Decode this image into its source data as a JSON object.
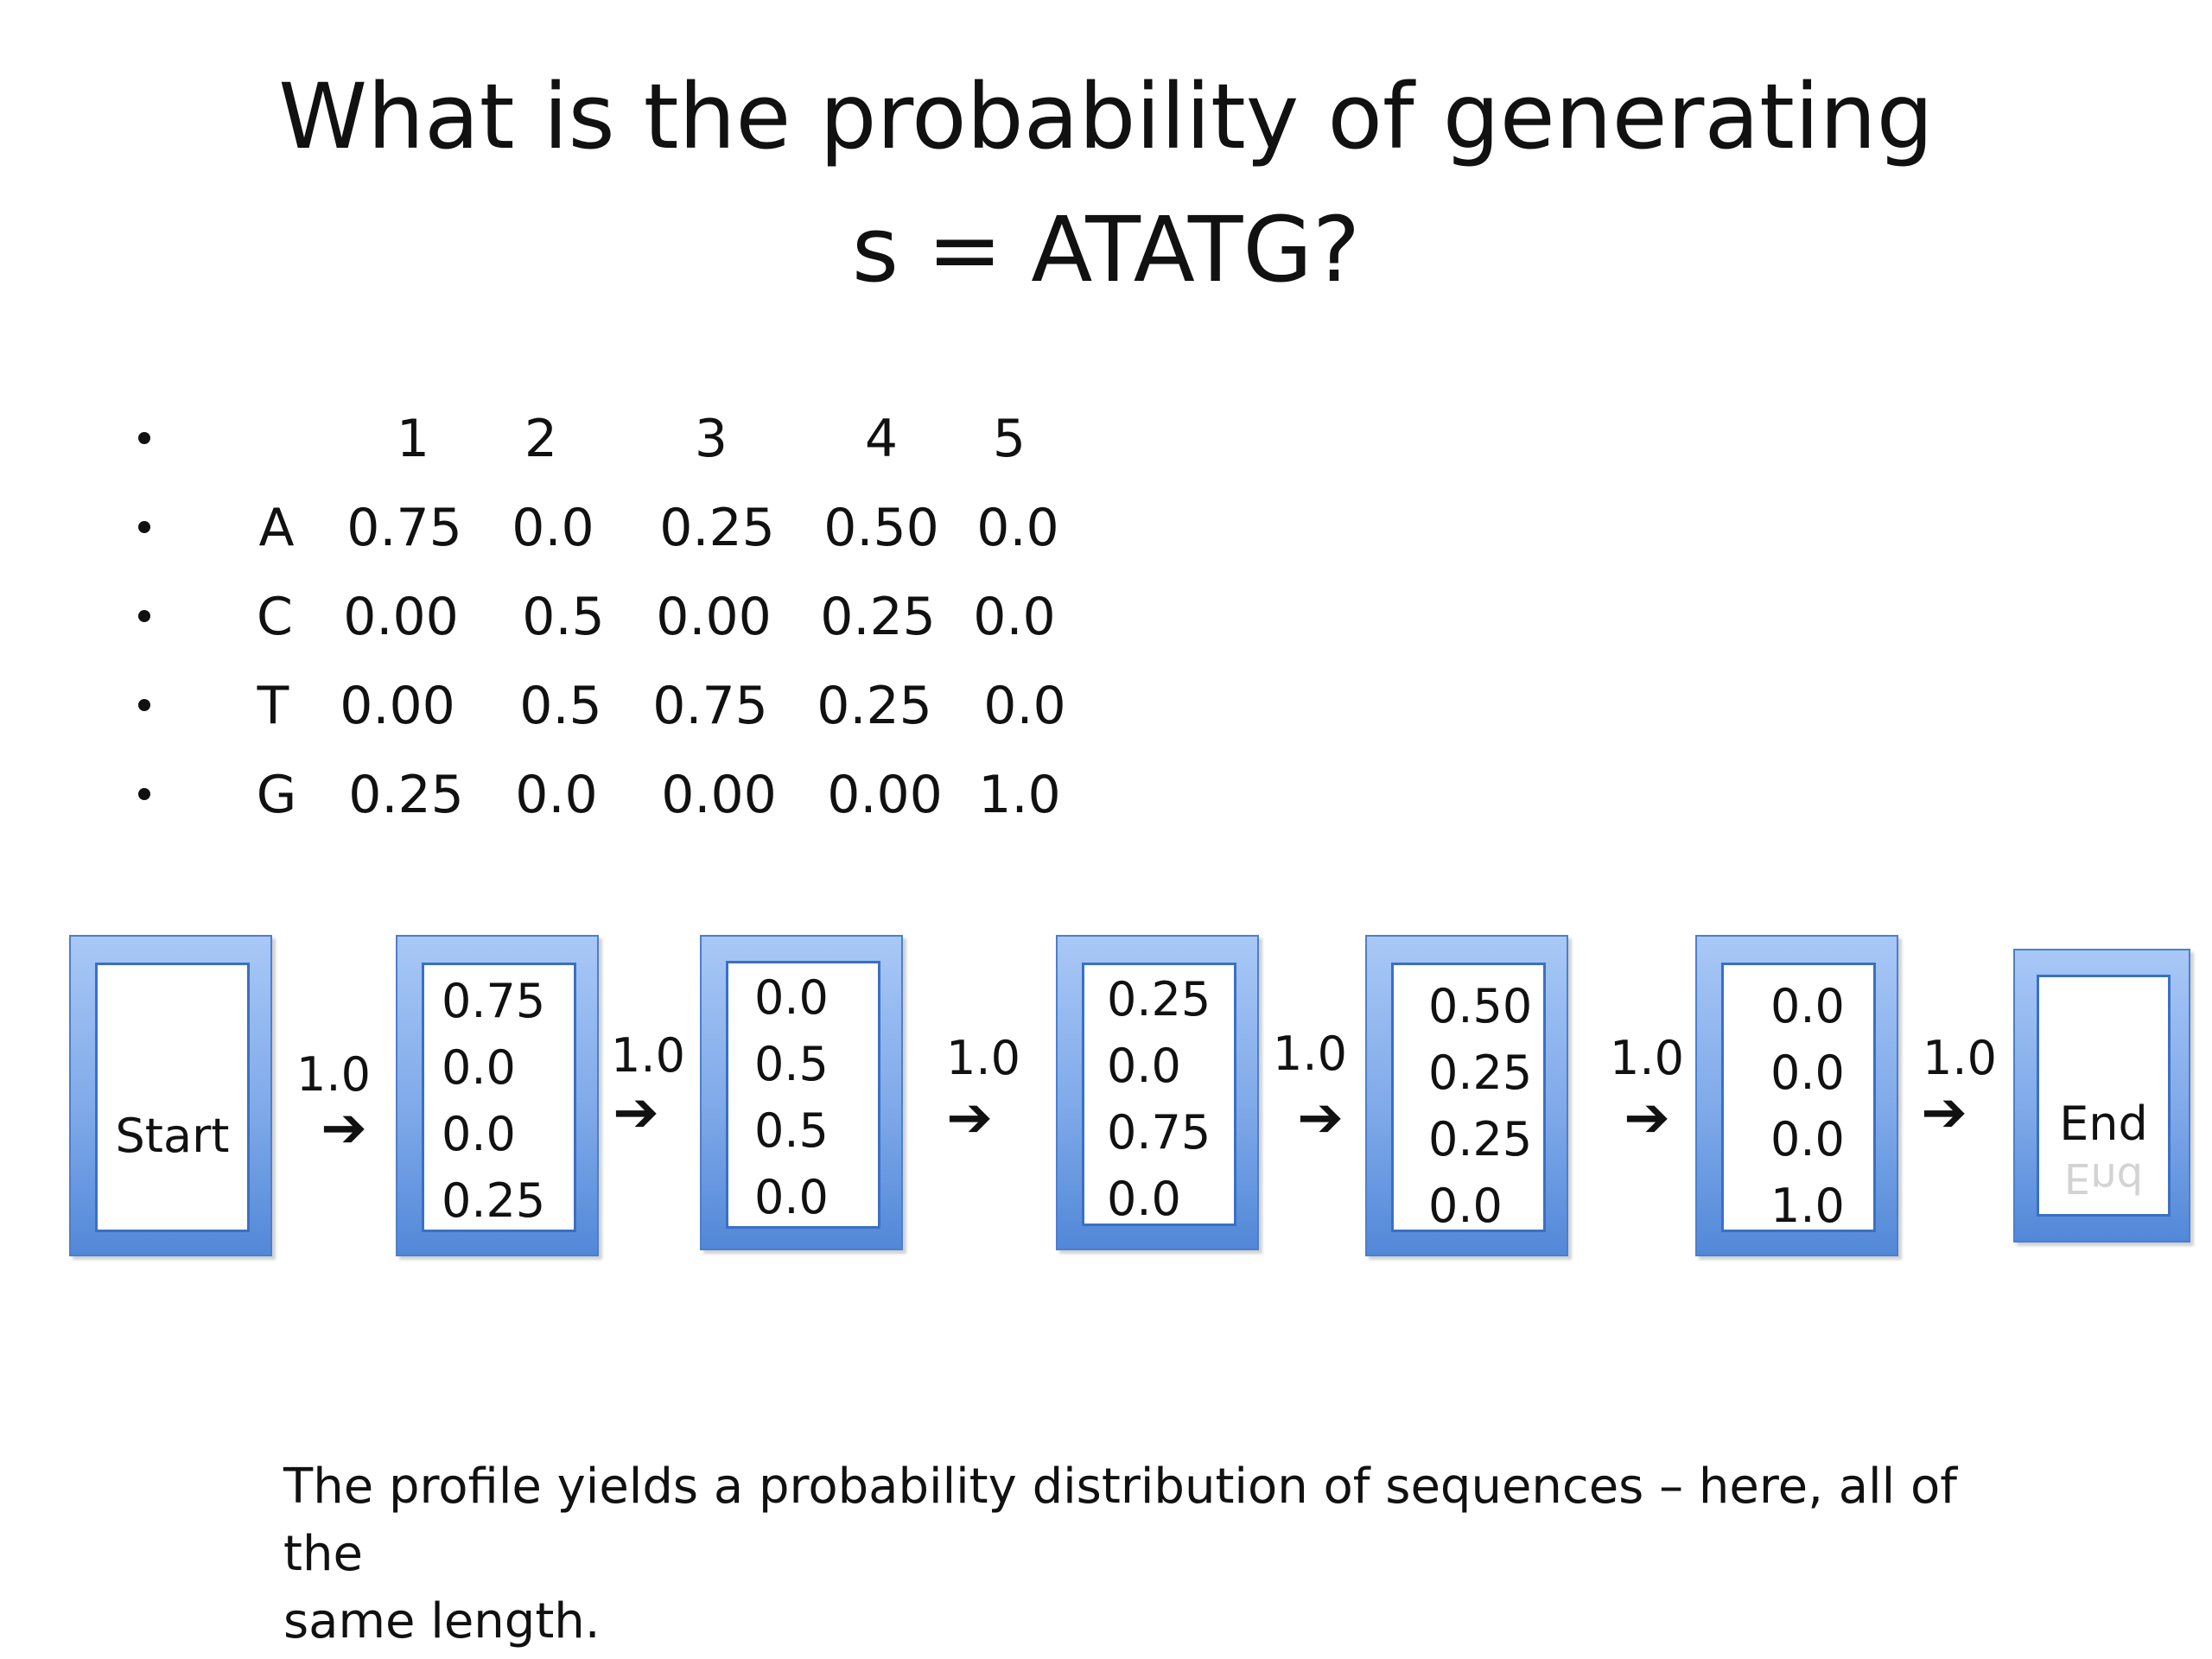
{
  "title": {
    "line1": "What is the probability of generating",
    "line2": "s = ATATG?"
  },
  "profile_table": {
    "columns": [
      "1",
      "2",
      "3",
      "4",
      "5"
    ],
    "rows": [
      {
        "symbol": "A",
        "values": [
          "0.75",
          "0.0",
          "0.25",
          "0.50",
          "0.0"
        ]
      },
      {
        "symbol": "C",
        "values": [
          "0.00",
          "0.5",
          "0.00",
          "0.25",
          "0.0"
        ]
      },
      {
        "symbol": "T",
        "values": [
          "0.00",
          "0.5",
          "0.75",
          "0.25",
          "0.0"
        ]
      },
      {
        "symbol": "G",
        "values": [
          "0.25",
          "0.0",
          "0.00",
          "0.00",
          "1.0"
        ]
      }
    ]
  },
  "states": {
    "start": "Start",
    "end": "End",
    "s1": [
      "0.75",
      "0.0",
      "0.0",
      "0.25"
    ],
    "s2": [
      "0.0",
      "0.5",
      "0.5",
      "0.0"
    ],
    "s3": [
      "0.25",
      "0.0",
      "0.75",
      "0.0"
    ],
    "s4": [
      "0.50",
      "0.25",
      "0.25",
      "0.0"
    ],
    "s5": [
      "0.0",
      "0.0",
      "0.0",
      "1.0"
    ]
  },
  "transitions": [
    "1.0",
    "1.0",
    "1.0",
    "1.0",
    "1.0",
    "1.0"
  ],
  "footer": {
    "line1": "The profile yields a probability distribution of sequences – here, all of the",
    "line2": "same length."
  }
}
